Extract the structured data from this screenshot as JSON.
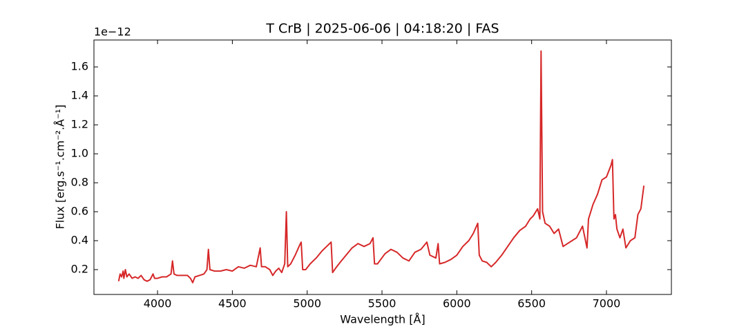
{
  "chart_data": {
    "type": "line",
    "title": "T CrB | 2025-06-06 | 04:18:20 | FAS",
    "x_label": "Wavelength [Å]",
    "y_label": "Flux [erg.s⁻¹.cm⁻².Å⁻¹]",
    "y_offset_label": "1e−12",
    "color": "#d62728",
    "xlim": [
      3575,
      7434
    ],
    "ylim": [
      0.0286,
      1.786
    ],
    "xticks": [
      4000,
      4500,
      5000,
      5500,
      6000,
      6500,
      7000
    ],
    "yticks": [
      0.2,
      0.4,
      0.6,
      0.8,
      {
        "value": 1,
        "label": "1.0"
      },
      1.2,
      1.4,
      1.6
    ],
    "x": [
      3740,
      3750,
      3760,
      3770,
      3775,
      3785,
      3795,
      3810,
      3830,
      3850,
      3870,
      3890,
      3910,
      3930,
      3950,
      3970,
      3980,
      4000,
      4030,
      4060,
      4090,
      4100,
      4110,
      4130,
      4160,
      4200,
      4220,
      4235,
      4250,
      4280,
      4310,
      4330,
      4340,
      4350,
      4380,
      4420,
      4460,
      4500,
      4540,
      4580,
      4620,
      4660,
      4686,
      4695,
      4720,
      4750,
      4770,
      4790,
      4810,
      4830,
      4850,
      4861,
      4870,
      4890,
      4920,
      4950,
      4960,
      4970,
      4990,
      5020,
      5060,
      5100,
      5130,
      5160,
      5170,
      5190,
      5220,
      5260,
      5300,
      5340,
      5380,
      5420,
      5440,
      5450,
      5470,
      5520,
      5560,
      5600,
      5640,
      5680,
      5720,
      5760,
      5800,
      5820,
      5860,
      5875,
      5885,
      5920,
      5960,
      6000,
      6040,
      6080,
      6110,
      6140,
      6150,
      6170,
      6200,
      6230,
      6260,
      6300,
      6340,
      6380,
      6420,
      6460,
      6490,
      6510,
      6540,
      6555,
      6563,
      6573,
      6590,
      6620,
      6650,
      6680,
      6710,
      6740,
      6770,
      6800,
      6840,
      6870,
      6880,
      6910,
      6940,
      6970,
      7000,
      7030,
      7040,
      7050,
      7060,
      7070,
      7090,
      7110,
      7130,
      7160,
      7190,
      7210,
      7230,
      7250
    ],
    "values": [
      0.12,
      0.17,
      0.15,
      0.19,
      0.14,
      0.2,
      0.15,
      0.17,
      0.14,
      0.15,
      0.14,
      0.16,
      0.13,
      0.12,
      0.13,
      0.17,
      0.14,
      0.14,
      0.15,
      0.15,
      0.17,
      0.26,
      0.17,
      0.16,
      0.16,
      0.16,
      0.14,
      0.11,
      0.15,
      0.16,
      0.17,
      0.2,
      0.34,
      0.2,
      0.19,
      0.19,
      0.2,
      0.19,
      0.22,
      0.21,
      0.23,
      0.22,
      0.35,
      0.22,
      0.22,
      0.2,
      0.16,
      0.19,
      0.21,
      0.18,
      0.24,
      0.6,
      0.22,
      0.24,
      0.3,
      0.37,
      0.39,
      0.2,
      0.2,
      0.24,
      0.28,
      0.33,
      0.36,
      0.39,
      0.18,
      0.21,
      0.25,
      0.3,
      0.35,
      0.38,
      0.36,
      0.38,
      0.42,
      0.24,
      0.24,
      0.31,
      0.34,
      0.32,
      0.28,
      0.26,
      0.32,
      0.34,
      0.39,
      0.3,
      0.28,
      0.38,
      0.24,
      0.25,
      0.27,
      0.3,
      0.36,
      0.4,
      0.45,
      0.52,
      0.3,
      0.26,
      0.25,
      0.22,
      0.25,
      0.3,
      0.36,
      0.42,
      0.47,
      0.5,
      0.55,
      0.57,
      0.62,
      0.55,
      1.71,
      0.6,
      0.52,
      0.5,
      0.45,
      0.48,
      0.36,
      0.38,
      0.4,
      0.42,
      0.5,
      0.35,
      0.55,
      0.65,
      0.72,
      0.82,
      0.84,
      0.92,
      0.96,
      0.55,
      0.58,
      0.48,
      0.42,
      0.48,
      0.35,
      0.4,
      0.42,
      0.58,
      0.62,
      0.78
    ]
  }
}
